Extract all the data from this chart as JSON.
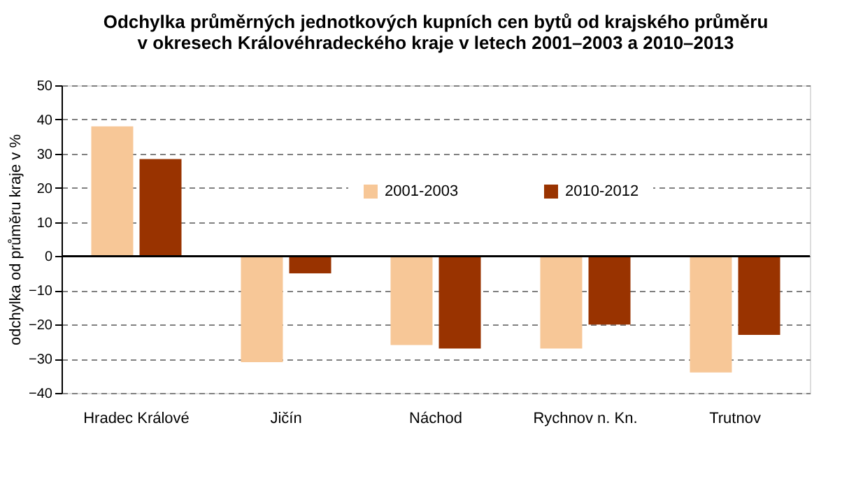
{
  "chart_data": {
    "type": "bar",
    "title": [
      "Odchylka průměrných jednotkových kupních cen bytů od krajského průměru",
      "v okresech Královéhradeckého kraje v letech 2001–2003 a 2010–2013"
    ],
    "ylabel": "odchylka od průměru kraje v %",
    "categories": [
      "Hradec Králové",
      "Jičín",
      "Náchod",
      "Rychnov n. Kn.",
      "Trutnov"
    ],
    "series": [
      {
        "name": "2001-2003",
        "color": "#f7c797",
        "values": [
          38,
          -31,
          -26,
          -27,
          -34
        ]
      },
      {
        "name": "2010-2012",
        "color": "#993300",
        "values": [
          28.4,
          -5,
          -27,
          -20,
          -23
        ]
      }
    ],
    "ylim": [
      -40,
      50
    ],
    "yticks": [
      -40,
      -30,
      -20,
      -10,
      0,
      10,
      20,
      30,
      40,
      50
    ],
    "grid": "y",
    "legend": "top",
    "line_style": "dashed",
    "ref_lines": [
      {
        "axis": "y",
        "value": 0,
        "color": "#000000"
      }
    ]
  }
}
